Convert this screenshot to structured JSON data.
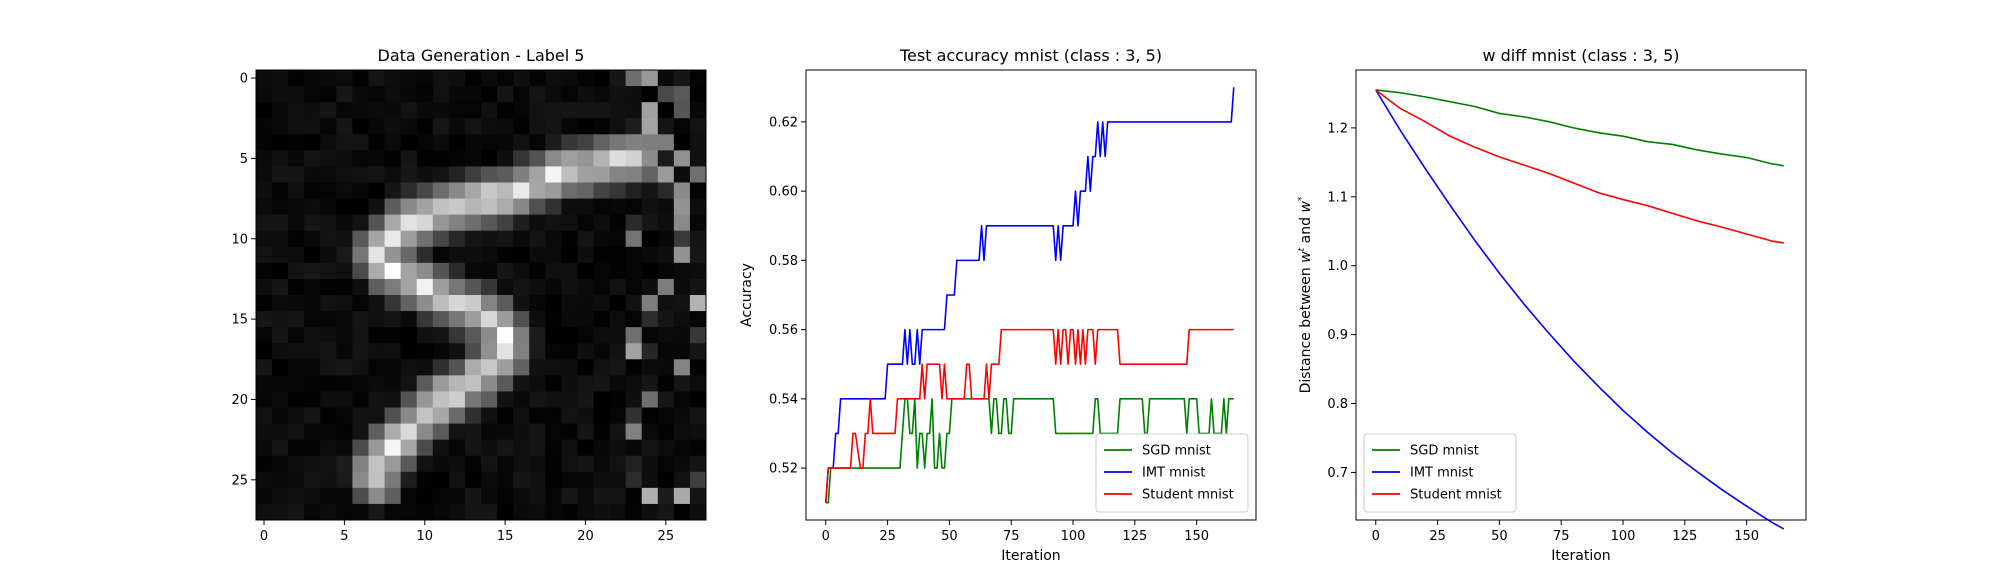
{
  "chart_data": [
    {
      "type": "heatmap",
      "title": "Data Generation - Label 5",
      "xlim": [
        -0.5,
        27.5
      ],
      "ylim": [
        27.5,
        -0.5
      ],
      "xticks": [
        "0",
        "5",
        "10",
        "15",
        "20",
        "25"
      ],
      "yticks": [
        "0",
        "5",
        "10",
        "15",
        "20",
        "25"
      ],
      "colormap": "gray",
      "rows": 28,
      "cols": 28,
      "stroke": [
        [
          5,
          23
        ],
        [
          6,
          18
        ],
        [
          7,
          16
        ],
        [
          8,
          12
        ],
        [
          9,
          9
        ],
        [
          10,
          8
        ],
        [
          11,
          7
        ],
        [
          12,
          8
        ],
        [
          13,
          10
        ],
        [
          14,
          12
        ],
        [
          15,
          14
        ],
        [
          16,
          15
        ],
        [
          17,
          15
        ],
        [
          18,
          14
        ],
        [
          19,
          13
        ],
        [
          20,
          11
        ],
        [
          21,
          10
        ],
        [
          22,
          9
        ],
        [
          23,
          8
        ],
        [
          24,
          7
        ],
        [
          25,
          7
        ]
      ],
      "noise_columns": [
        23,
        24,
        25,
        26,
        27
      ]
    },
    {
      "type": "line",
      "title": "Test accuracy mnist (class : 3, 5)",
      "xlabel": "Iteration",
      "ylabel": "Accuracy",
      "xlim": [
        -8,
        174
      ],
      "ylim": [
        0.505,
        0.635
      ],
      "xticks": [
        "0",
        "25",
        "50",
        "75",
        "100",
        "125",
        "150"
      ],
      "yticks": [
        "0.52",
        "0.54",
        "0.56",
        "0.58",
        "0.60",
        "0.62"
      ],
      "legend_position": "lower-right",
      "series": [
        {
          "name": "SGD mnist",
          "color": "#008000",
          "x": [
            0,
            1,
            2,
            3,
            4,
            30,
            31,
            32,
            33,
            34,
            35,
            36,
            37,
            38,
            39,
            40,
            41,
            42,
            43,
            44,
            45,
            46,
            47,
            48,
            49,
            50,
            51,
            52,
            53,
            66,
            67,
            68,
            69,
            70,
            71,
            72,
            73,
            74,
            75,
            76,
            77,
            78,
            92,
            93,
            94,
            108,
            109,
            110,
            111,
            112,
            118,
            119,
            120,
            128,
            129,
            130,
            131,
            145,
            146,
            147,
            150,
            151,
            152,
            155,
            156,
            157,
            160,
            161,
            162,
            163,
            164,
            165
          ],
          "y": [
            0.51,
            0.51,
            0.52,
            0.52,
            0.52,
            0.52,
            0.53,
            0.54,
            0.54,
            0.53,
            0.53,
            0.54,
            0.52,
            0.53,
            0.53,
            0.52,
            0.53,
            0.53,
            0.54,
            0.52,
            0.52,
            0.53,
            0.52,
            0.52,
            0.53,
            0.53,
            0.54,
            0.54,
            0.54,
            0.54,
            0.53,
            0.54,
            0.54,
            0.53,
            0.53,
            0.54,
            0.54,
            0.53,
            0.53,
            0.54,
            0.54,
            0.54,
            0.54,
            0.53,
            0.53,
            0.53,
            0.54,
            0.54,
            0.53,
            0.53,
            0.53,
            0.54,
            0.54,
            0.54,
            0.53,
            0.53,
            0.54,
            0.54,
            0.53,
            0.54,
            0.54,
            0.53,
            0.53,
            0.53,
            0.54,
            0.53,
            0.53,
            0.54,
            0.53,
            0.54,
            0.54,
            0.54
          ]
        },
        {
          "name": "IMT mnist",
          "color": "#0000ff",
          "x": [
            0,
            1,
            2,
            3,
            4,
            5,
            6,
            7,
            12,
            24,
            25,
            26,
            31,
            32,
            33,
            34,
            35,
            36,
            37,
            38,
            39,
            40,
            41,
            48,
            49,
            52,
            53,
            57,
            58,
            62,
            63,
            64,
            65,
            66,
            74,
            75,
            92,
            93,
            94,
            95,
            96,
            99,
            100,
            101,
            102,
            103,
            104,
            105,
            106,
            107,
            108,
            109,
            110,
            111,
            112,
            113,
            114,
            115,
            116,
            117,
            118,
            119,
            162,
            163,
            164,
            165
          ],
          "y": [
            0.51,
            0.52,
            0.52,
            0.52,
            0.53,
            0.53,
            0.54,
            0.54,
            0.54,
            0.54,
            0.55,
            0.55,
            0.55,
            0.56,
            0.55,
            0.56,
            0.55,
            0.55,
            0.56,
            0.55,
            0.56,
            0.56,
            0.56,
            0.56,
            0.57,
            0.57,
            0.58,
            0.58,
            0.58,
            0.58,
            0.59,
            0.58,
            0.59,
            0.59,
            0.59,
            0.59,
            0.59,
            0.58,
            0.59,
            0.58,
            0.59,
            0.59,
            0.59,
            0.6,
            0.59,
            0.6,
            0.6,
            0.6,
            0.61,
            0.6,
            0.61,
            0.61,
            0.62,
            0.61,
            0.62,
            0.61,
            0.62,
            0.62,
            0.62,
            0.62,
            0.62,
            0.62,
            0.62,
            0.62,
            0.62,
            0.63
          ]
        },
        {
          "name": "Student mnist",
          "color": "#ff0000",
          "x": [
            0,
            1,
            2,
            3,
            10,
            11,
            12,
            14,
            15,
            16,
            17,
            18,
            19,
            20,
            21,
            22,
            28,
            29,
            30,
            38,
            39,
            40,
            41,
            42,
            44,
            45,
            46,
            47,
            48,
            49,
            50,
            51,
            52,
            53,
            54,
            56,
            57,
            58,
            59,
            60,
            64,
            65,
            66,
            67,
            68,
            70,
            71,
            72,
            73,
            74,
            75,
            92,
            93,
            94,
            95,
            96,
            97,
            98,
            99,
            100,
            101,
            102,
            103,
            104,
            105,
            106,
            107,
            108,
            109,
            110,
            111,
            112,
            113,
            114,
            118,
            119,
            120,
            121,
            146,
            147,
            148,
            165
          ],
          "y": [
            0.51,
            0.52,
            0.52,
            0.52,
            0.52,
            0.53,
            0.53,
            0.52,
            0.52,
            0.53,
            0.53,
            0.54,
            0.53,
            0.53,
            0.53,
            0.53,
            0.53,
            0.54,
            0.54,
            0.54,
            0.55,
            0.54,
            0.55,
            0.55,
            0.55,
            0.55,
            0.55,
            0.54,
            0.55,
            0.54,
            0.54,
            0.54,
            0.54,
            0.54,
            0.54,
            0.54,
            0.55,
            0.55,
            0.54,
            0.54,
            0.54,
            0.55,
            0.54,
            0.55,
            0.55,
            0.55,
            0.56,
            0.56,
            0.56,
            0.56,
            0.56,
            0.56,
            0.55,
            0.56,
            0.55,
            0.56,
            0.56,
            0.55,
            0.56,
            0.56,
            0.55,
            0.56,
            0.55,
            0.56,
            0.55,
            0.56,
            0.56,
            0.56,
            0.55,
            0.56,
            0.56,
            0.56,
            0.56,
            0.56,
            0.56,
            0.55,
            0.55,
            0.55,
            0.55,
            0.56,
            0.56,
            0.56
          ]
        }
      ]
    },
    {
      "type": "line",
      "title": "w diff mnist (class : 3, 5)",
      "xlabel": "Iteration",
      "ylabel": "Distance between w^t and w^*",
      "xlim": [
        -8,
        174
      ],
      "ylim": [
        0.631,
        1.284
      ],
      "xticks": [
        "0",
        "25",
        "50",
        "75",
        "100",
        "125",
        "150"
      ],
      "yticks": [
        "0.7",
        "0.8",
        "0.9",
        "1.0",
        "1.1",
        "1.2"
      ],
      "legend_position": "lower-left",
      "series": [
        {
          "name": "SGD mnist",
          "color": "#008000",
          "x": [
            0,
            10,
            20,
            30,
            40,
            50,
            60,
            70,
            80,
            90,
            100,
            110,
            120,
            130,
            140,
            150,
            160,
            165
          ],
          "y": [
            1.255,
            1.251,
            1.245,
            1.238,
            1.231,
            1.221,
            1.216,
            1.209,
            1.2,
            1.193,
            1.188,
            1.18,
            1.176,
            1.168,
            1.162,
            1.157,
            1.148,
            1.145
          ]
        },
        {
          "name": "IMT mnist",
          "color": "#0000ff",
          "x": [
            0,
            10,
            20,
            30,
            40,
            50,
            60,
            70,
            80,
            90,
            100,
            110,
            120,
            130,
            140,
            150,
            160,
            165
          ],
          "y": [
            1.255,
            1.196,
            1.141,
            1.088,
            1.037,
            0.989,
            0.944,
            0.902,
            0.862,
            0.825,
            0.79,
            0.758,
            0.728,
            0.701,
            0.675,
            0.651,
            0.628,
            0.618
          ]
        },
        {
          "name": "Student mnist",
          "color": "#ff0000",
          "x": [
            0,
            10,
            20,
            30,
            40,
            50,
            60,
            70,
            80,
            90,
            100,
            110,
            120,
            130,
            140,
            150,
            160,
            165
          ],
          "y": [
            1.255,
            1.228,
            1.209,
            1.188,
            1.172,
            1.158,
            1.146,
            1.134,
            1.12,
            1.106,
            1.096,
            1.087,
            1.076,
            1.065,
            1.056,
            1.046,
            1.036,
            1.033
          ]
        }
      ]
    }
  ]
}
